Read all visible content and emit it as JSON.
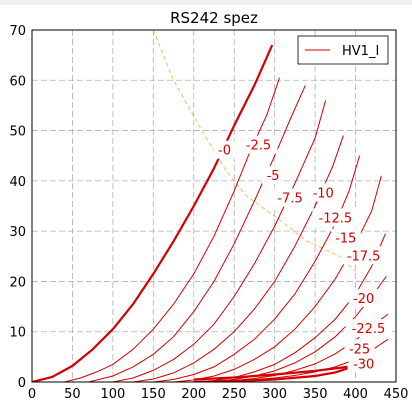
{
  "chart_data": {
    "type": "line",
    "title": "RS242 spez",
    "xlabel": "",
    "ylabel": "",
    "xlim": [
      0,
      450
    ],
    "ylim": [
      0,
      70
    ],
    "xticks": [
      0,
      50,
      100,
      150,
      200,
      250,
      300,
      350,
      400,
      450
    ],
    "yticks": [
      0,
      10,
      20,
      30,
      40,
      50,
      60,
      70
    ],
    "grid": true,
    "legend": {
      "position": "top-right",
      "entries": [
        "HV1_I"
      ]
    },
    "colors": {
      "curve": "#d40000",
      "bold_curve": "#d40000",
      "limit_curve": "#e8c060",
      "grid": "#b0b0b0"
    },
    "limit_curve": {
      "style": "dashed",
      "points": [
        [
          150,
          70
        ],
        [
          175,
          60
        ],
        [
          210,
          50
        ],
        [
          240,
          42
        ],
        [
          265,
          37
        ],
        [
          300,
          33
        ],
        [
          340,
          28
        ],
        [
          380,
          25
        ],
        [
          400,
          22
        ]
      ]
    },
    "series": [
      {
        "name": "HV1_I",
        "label": "-0",
        "bold": true,
        "points": [
          [
            0,
            0
          ],
          [
            25,
            1
          ],
          [
            50,
            3.2
          ],
          [
            75,
            6.5
          ],
          [
            100,
            10.5
          ],
          [
            125,
            15.5
          ],
          [
            150,
            21.5
          ],
          [
            175,
            28
          ],
          [
            200,
            35
          ],
          [
            225,
            42.5
          ],
          [
            250,
            51
          ],
          [
            275,
            59
          ],
          [
            297,
            67
          ]
        ]
      },
      {
        "label": "-2.5",
        "bold": false,
        "points": [
          [
            40,
            0
          ],
          [
            60,
            0.8
          ],
          [
            80,
            2
          ],
          [
            100,
            3.5
          ],
          [
            125,
            6.5
          ],
          [
            150,
            10.5
          ],
          [
            175,
            15.5
          ],
          [
            200,
            21.5
          ],
          [
            225,
            29
          ],
          [
            250,
            38
          ],
          [
            270,
            46
          ],
          [
            290,
            53
          ],
          [
            306,
            60.5
          ]
        ]
      },
      {
        "label": "-5",
        "bold": false,
        "points": [
          [
            70,
            0
          ],
          [
            100,
            1.2
          ],
          [
            125,
            3
          ],
          [
            150,
            5.5
          ],
          [
            175,
            9
          ],
          [
            200,
            14
          ],
          [
            225,
            20
          ],
          [
            250,
            27.5
          ],
          [
            275,
            36
          ],
          [
            300,
            45
          ],
          [
            320,
            52.5
          ],
          [
            338,
            59
          ]
        ]
      },
      {
        "label": "-7.5",
        "bold": false,
        "points": [
          [
            100,
            0
          ],
          [
            125,
            0.8
          ],
          [
            150,
            2.3
          ],
          [
            175,
            4.5
          ],
          [
            200,
            7.5
          ],
          [
            225,
            11.5
          ],
          [
            250,
            17
          ],
          [
            275,
            23.5
          ],
          [
            300,
            31
          ],
          [
            325,
            39.5
          ],
          [
            350,
            48.5
          ],
          [
            363,
            56
          ]
        ]
      },
      {
        "label": "-10",
        "bold": false,
        "points": [
          [
            125,
            0
          ],
          [
            150,
            0.6
          ],
          [
            175,
            1.8
          ],
          [
            200,
            3.8
          ],
          [
            225,
            6.5
          ],
          [
            250,
            10
          ],
          [
            275,
            14.5
          ],
          [
            300,
            20
          ],
          [
            325,
            27
          ],
          [
            350,
            35
          ],
          [
            372,
            43
          ],
          [
            385,
            49
          ]
        ]
      },
      {
        "label": "-12.5",
        "bold": false,
        "points": [
          [
            150,
            0
          ],
          [
            175,
            0.5
          ],
          [
            200,
            1.5
          ],
          [
            225,
            3
          ],
          [
            250,
            5.5
          ],
          [
            275,
            8.5
          ],
          [
            300,
            12.5
          ],
          [
            325,
            17.5
          ],
          [
            350,
            24
          ],
          [
            375,
            31.5
          ],
          [
            392,
            38
          ],
          [
            405,
            45
          ]
        ]
      },
      {
        "label": "-15",
        "bold": false,
        "points": [
          [
            175,
            0
          ],
          [
            200,
            0.4
          ],
          [
            225,
            1.2
          ],
          [
            250,
            2.5
          ],
          [
            275,
            4.5
          ],
          [
            300,
            7
          ],
          [
            325,
            10.5
          ],
          [
            350,
            15
          ],
          [
            375,
            20.5
          ],
          [
            400,
            27.5
          ],
          [
            420,
            34
          ],
          [
            432,
            41
          ]
        ]
      },
      {
        "label": "-17.5",
        "bold": false,
        "points": [
          [
            200,
            0
          ],
          [
            225,
            0.3
          ],
          [
            250,
            0.9
          ],
          [
            275,
            2
          ],
          [
            300,
            3.5
          ],
          [
            325,
            5.8
          ],
          [
            350,
            8.8
          ],
          [
            375,
            12.5
          ],
          [
            400,
            17.5
          ],
          [
            420,
            23
          ],
          [
            437,
            29.5
          ]
        ]
      },
      {
        "label": "-20",
        "bold": false,
        "points": [
          [
            200,
            0
          ],
          [
            225,
            0.2
          ],
          [
            250,
            0.5
          ],
          [
            275,
            1.2
          ],
          [
            300,
            2.2
          ],
          [
            325,
            3.8
          ],
          [
            350,
            6
          ],
          [
            375,
            9
          ],
          [
            400,
            13
          ],
          [
            420,
            17
          ],
          [
            438,
            21
          ]
        ]
      },
      {
        "label": "-22.5",
        "bold": false,
        "points": [
          [
            200,
            0
          ],
          [
            250,
            0.3
          ],
          [
            275,
            0.7
          ],
          [
            300,
            1.3
          ],
          [
            325,
            2.3
          ],
          [
            350,
            3.6
          ],
          [
            375,
            5.6
          ],
          [
            400,
            8.3
          ],
          [
            420,
            11
          ],
          [
            440,
            13.5
          ]
        ]
      },
      {
        "label": "-25",
        "bold": false,
        "points": [
          [
            200,
            0
          ],
          [
            250,
            0.2
          ],
          [
            300,
            0.8
          ],
          [
            325,
            1.3
          ],
          [
            350,
            2
          ],
          [
            375,
            3
          ],
          [
            400,
            4.5
          ],
          [
            420,
            6.3
          ],
          [
            440,
            8.5
          ]
        ]
      },
      {
        "label": "-30",
        "bold": true,
        "points": [
          [
            200,
            0
          ],
          [
            250,
            0.2
          ],
          [
            300,
            0.5
          ],
          [
            350,
            1.2
          ],
          [
            375,
            1.9
          ],
          [
            390,
            2.7
          ]
        ]
      },
      {
        "label": "",
        "bold": true,
        "points": [
          [
            200,
            0.5
          ],
          [
            250,
            0.9
          ],
          [
            300,
            1.5
          ],
          [
            350,
            2.2
          ],
          [
            390,
            3
          ]
        ]
      }
    ],
    "curve_labels": [
      {
        "text": "-0",
        "x": 238,
        "y": 46
      },
      {
        "text": "-2.5",
        "x": 280,
        "y": 47
      },
      {
        "text": "-5",
        "x": 298,
        "y": 41
      },
      {
        "text": "-7.5",
        "x": 319,
        "y": 36.5
      },
      {
        "text": "-10",
        "x": 360,
        "y": 37.5
      },
      {
        "text": "-12.5",
        "x": 375,
        "y": 32.5
      },
      {
        "text": "-15",
        "x": 388,
        "y": 28.5
      },
      {
        "text": "-17.5",
        "x": 410,
        "y": 25
      },
      {
        "text": "-20",
        "x": 410,
        "y": 16.5
      },
      {
        "text": "-22.5",
        "x": 416,
        "y": 10.5
      },
      {
        "text": "-25",
        "x": 405,
        "y": 6.5
      },
      {
        "text": "-30",
        "x": 410,
        "y": 3.5
      }
    ]
  }
}
